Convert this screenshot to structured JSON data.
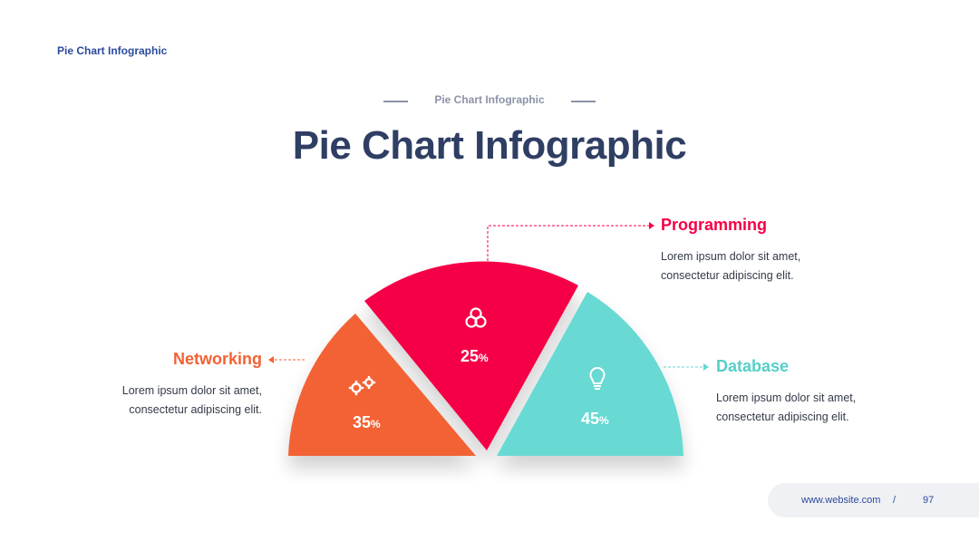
{
  "header": {
    "corner_title": "Pie Chart Infographic",
    "subtitle": "Pie Chart Infographic",
    "title": "Pie Chart Infographic"
  },
  "chart_data": {
    "type": "pie",
    "shape": "semicircle",
    "slices": [
      {
        "name": "Networking",
        "value": 35,
        "display": "35",
        "unit": "%",
        "color": "#f26234",
        "icon": "gears-icon",
        "description_line1": "Lorem ipsum dolor sit amet,",
        "description_line2": "consectetur adipiscing elit."
      },
      {
        "name": "Programming",
        "value": 25,
        "display": "25",
        "unit": "%",
        "color": "#f50046",
        "icon": "venn-circles-icon",
        "description_line1": "Lorem ipsum dolor sit amet,",
        "description_line2": "consectetur adipiscing elit."
      },
      {
        "name": "Database",
        "value": 45,
        "display": "45",
        "unit": "%",
        "color": "#67d9d3",
        "icon": "lightbulb-icon",
        "description_line1": "Lorem ipsum dolor sit amet,",
        "description_line2": "consectetur adipiscing elit."
      }
    ]
  },
  "footer": {
    "url": "www.website.com",
    "separator": "/",
    "page": "97"
  }
}
